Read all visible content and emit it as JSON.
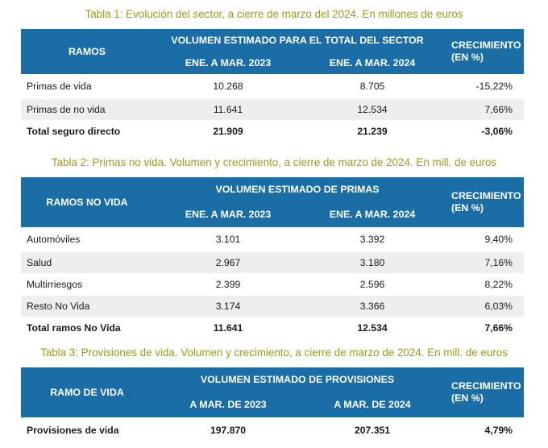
{
  "table1": {
    "caption": "Tabla 1: Evolución del sector, a cierre de marzo del 2024. En millones de euros",
    "header_ramo": "RAMOS",
    "header_group": "VOLUMEN ESTIMADO PARA EL TOTAL DEL SECTOR",
    "header_p1": "ENE. A MAR. 2023",
    "header_p2": "ENE. A MAR. 2024",
    "header_growth": "CRECIMIENTO (EN %)",
    "rows": [
      {
        "name": "Primas de vida",
        "v2023": "10.268",
        "v2024": "8.705",
        "growth": "-15,22%"
      },
      {
        "name": "Primas de no vida",
        "v2023": "11.641",
        "v2024": "12.534",
        "growth": "7,66%"
      }
    ],
    "total": {
      "name": "Total seguro directo",
      "v2023": "21.909",
      "v2024": "21.239",
      "growth": "-3,06%"
    }
  },
  "table2": {
    "caption": "Tabla 2: Primas no vida. Volumen y crecimiento, a cierre de marzo de 2024. En mill. de euros",
    "header_ramo": "RAMOS NO VIDA",
    "header_group": "VOLUMEN ESTIMADO DE PRIMAS",
    "header_p1": "ENE. A MAR. 2023",
    "header_p2": "ENE. A MAR. 2024",
    "header_growth": "CRECIMIENTO (EN %)",
    "rows": [
      {
        "name": "Automóviles",
        "v2023": "3.101",
        "v2024": "3.392",
        "growth": "9,40%"
      },
      {
        "name": "Salud",
        "v2023": "2.967",
        "v2024": "3.180",
        "growth": "7,16%"
      },
      {
        "name": "Multirriesgos",
        "v2023": "2.399",
        "v2024": "2.596",
        "growth": "8,22%"
      },
      {
        "name": "Resto No Vida",
        "v2023": "3.174",
        "v2024": "3.366",
        "growth": "6,03%"
      }
    ],
    "total": {
      "name": "Total ramos No Vida",
      "v2023": "11.641",
      "v2024": "12.534",
      "growth": "7,66%"
    }
  },
  "table3": {
    "caption": "Tabla 3: Provisiones de vida. Volumen y crecimiento, a cierre de marzo de 2024. En mill. de euros",
    "header_ramo": "RAMO DE VIDA",
    "header_group": "VOLUMEN ESTIMADO DE PROVISIONES",
    "header_p1": "A MAR. DE 2023",
    "header_p2": "A MAR. DE 2024",
    "header_growth": "CRECIMIENTO (EN %)",
    "total": {
      "name": "Provisiones de vida",
      "v2023": "197.870",
      "v2024": "207.351",
      "growth": "4,79%"
    }
  },
  "colors": {
    "header_bg": "#1b6ea5",
    "header_text": "#ffffff",
    "caption_text": "#9a9a1e",
    "alt_row_bg": "#eeeeee"
  }
}
